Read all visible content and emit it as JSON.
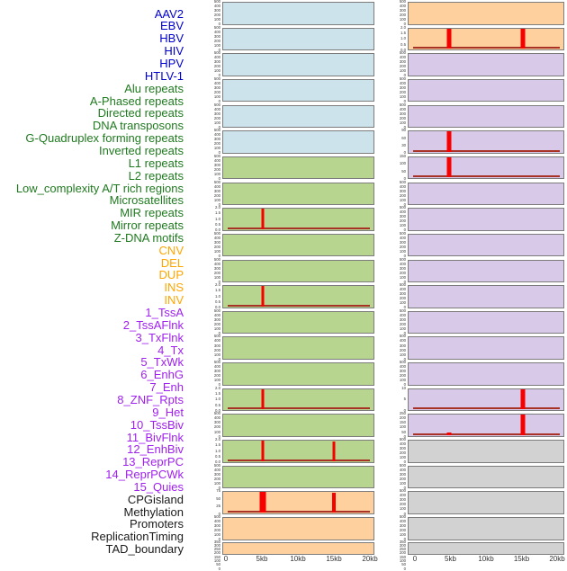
{
  "colors": {
    "labels": {
      "virus": "#0000cd",
      "repeat": "#1f7a1f",
      "variant": "#ffa500",
      "chromhmm": "#a020f0",
      "other": "#1a1a1a"
    },
    "panels": {
      "blue": "#cde3ec",
      "green": "#b7d58e",
      "orange": "#fdd09e",
      "purple": "#d7c9e7",
      "gray": "#d2d2d2"
    },
    "spike_red": "#f80000",
    "baseline_red": "#a93226",
    "panel_border": "#7c7c7c"
  },
  "chart_data": {
    "type": "area",
    "layout": "small multiples: 44 genomic feature tracks in 2 columns of 22 panels; signal plotted over a 0-20kb window; red spikes mark signal peaks at 5kb and/or 15kb",
    "x": {
      "tick_labels": [
        "0",
        "5kb",
        "10kb",
        "15kb",
        "20kb"
      ],
      "range_kb": [
        0,
        20
      ]
    },
    "legend_position": "left label list, one entry per track, grouped by color",
    "tracks": [
      {
        "label": "AAV2",
        "group": "virus",
        "bg": "blue",
        "yticks": [
          "500",
          "400",
          "300",
          "200",
          "100",
          "0"
        ],
        "spikes": [],
        "baseline": false
      },
      {
        "label": "EBV",
        "group": "virus",
        "bg": "blue",
        "yticks": [
          "500",
          "400",
          "300",
          "200",
          "100",
          "0"
        ],
        "spikes": [],
        "baseline": false
      },
      {
        "label": "HBV",
        "group": "virus",
        "bg": "blue",
        "yticks": [
          "500",
          "400",
          "300",
          "200",
          "100",
          "0"
        ],
        "spikes": [],
        "baseline": false
      },
      {
        "label": "HIV",
        "group": "virus",
        "bg": "blue",
        "yticks": [
          "500",
          "400",
          "300",
          "200",
          "100",
          "0"
        ],
        "spikes": [],
        "baseline": false
      },
      {
        "label": "HPV",
        "group": "virus",
        "bg": "blue",
        "yticks": [
          "500",
          "400",
          "300",
          "200",
          "100",
          "0"
        ],
        "spikes": [],
        "baseline": false
      },
      {
        "label": "HTLV-1",
        "group": "virus",
        "bg": "blue",
        "yticks": [
          "500",
          "400",
          "300",
          "200",
          "100",
          "0"
        ],
        "spikes": [],
        "baseline": false
      },
      {
        "label": "Alu repeats",
        "group": "repeat",
        "bg": "green",
        "yticks": [
          "500",
          "400",
          "300",
          "200",
          "100",
          "0"
        ],
        "spikes": [],
        "baseline": false
      },
      {
        "label": "A-Phased repeats",
        "group": "repeat",
        "bg": "green",
        "yticks": [
          "500",
          "400",
          "300",
          "200",
          "100",
          "0"
        ],
        "spikes": [],
        "baseline": false
      },
      {
        "label": "Directed repeats",
        "group": "repeat",
        "bg": "green",
        "yticks": [
          "2.0",
          "1.5",
          "1.0",
          "0.5",
          "0.0"
        ],
        "spikes": [
          {
            "x_kb": 5,
            "h": 1,
            "w": 3
          }
        ],
        "baseline": true
      },
      {
        "label": "DNA transposons",
        "group": "repeat",
        "bg": "green",
        "yticks": [
          "500",
          "400",
          "300",
          "200",
          "100",
          "0"
        ],
        "spikes": [],
        "baseline": false
      },
      {
        "label": "G-Quadruplex forming repeats",
        "group": "repeat",
        "bg": "green",
        "yticks": [
          "500",
          "400",
          "300",
          "200",
          "100",
          "0"
        ],
        "spikes": [],
        "baseline": false
      },
      {
        "label": "Inverted repeats",
        "group": "repeat",
        "bg": "green",
        "yticks": [
          "2.0",
          "1.5",
          "1.0",
          "0.5",
          "0.0"
        ],
        "spikes": [
          {
            "x_kb": 5,
            "h": 1,
            "w": 3
          }
        ],
        "baseline": true
      },
      {
        "label": "L1 repeats",
        "group": "repeat",
        "bg": "green",
        "yticks": [
          "500",
          "400",
          "300",
          "200",
          "100",
          "0"
        ],
        "spikes": [],
        "baseline": false
      },
      {
        "label": "L2 repeats",
        "group": "repeat",
        "bg": "green",
        "yticks": [
          "500",
          "400",
          "300",
          "200",
          "100",
          "0"
        ],
        "spikes": [],
        "baseline": false
      },
      {
        "label": "Low_complexity A/T rich regions",
        "group": "repeat",
        "bg": "green",
        "yticks": [
          "500",
          "400",
          "300",
          "200",
          "100",
          "0"
        ],
        "spikes": [],
        "baseline": false
      },
      {
        "label": "Microsatellites",
        "group": "repeat",
        "bg": "green",
        "yticks": [
          "2.0",
          "1.5",
          "1.0",
          "0.5",
          "0.0"
        ],
        "spikes": [
          {
            "x_kb": 5,
            "h": 1,
            "w": 3
          }
        ],
        "baseline": true
      },
      {
        "label": "MIR repeats",
        "group": "repeat",
        "bg": "green",
        "yticks": [
          "500",
          "400",
          "300",
          "200",
          "100",
          "0"
        ],
        "spikes": [],
        "baseline": false
      },
      {
        "label": "Mirror repeats",
        "group": "repeat",
        "bg": "green",
        "yticks": [
          "2.0",
          "1.5",
          "1.0",
          "0.5",
          "0.0"
        ],
        "spikes": [
          {
            "x_kb": 5,
            "h": 1,
            "w": 3
          },
          {
            "x_kb": 15,
            "h": 0.95,
            "w": 3
          }
        ],
        "baseline": true
      },
      {
        "label": "Z-DNA motifs",
        "group": "repeat",
        "bg": "green",
        "yticks": [
          "500",
          "400",
          "300",
          "200",
          "100",
          "0"
        ],
        "spikes": [],
        "baseline": false
      },
      {
        "label": "CNV",
        "group": "variant",
        "bg": "orange",
        "yticks": [
          "75",
          "50",
          "25",
          "0"
        ],
        "spikes": [
          {
            "x_kb": 5,
            "h": 1,
            "w": 7
          },
          {
            "x_kb": 15,
            "h": 0.97,
            "w": 4
          }
        ],
        "baseline": true
      },
      {
        "label": "DEL",
        "group": "variant",
        "bg": "orange",
        "yticks": [
          "500",
          "400",
          "300",
          "200",
          "100",
          "0"
        ],
        "spikes": [],
        "baseline": false
      },
      {
        "label": "DUP",
        "group": "variant",
        "bg": "orange",
        "yticks": [
          "350",
          "300",
          "250",
          "200",
          "150",
          "100",
          "50",
          "0"
        ],
        "spikes": [],
        "baseline": false
      },
      {
        "label": "INS",
        "group": "variant",
        "bg": "orange",
        "yticks": [
          "500",
          "400",
          "300",
          "200",
          "100",
          "0"
        ],
        "spikes": [],
        "baseline": false
      },
      {
        "label": "INV",
        "group": "variant",
        "bg": "orange",
        "yticks": [
          "2.0",
          "1.5",
          "1.0",
          "0.5",
          "0.0"
        ],
        "spikes": [
          {
            "x_kb": 5,
            "h": 1,
            "w": 5
          },
          {
            "x_kb": 15,
            "h": 1,
            "w": 5
          }
        ],
        "baseline": true
      },
      {
        "label": "1_TssA",
        "group": "chromhmm",
        "bg": "purple",
        "yticks": [
          "500",
          "400",
          "300",
          "200",
          "100",
          "0"
        ],
        "spikes": [],
        "baseline": false
      },
      {
        "label": "2_TssAFlnk",
        "group": "chromhmm",
        "bg": "purple",
        "yticks": [
          "500",
          "400",
          "300",
          "200",
          "100",
          "0"
        ],
        "spikes": [],
        "baseline": false
      },
      {
        "label": "3_TxFlnk",
        "group": "chromhmm",
        "bg": "purple",
        "yticks": [
          "500",
          "400",
          "300",
          "200",
          "100",
          "0"
        ],
        "spikes": [],
        "baseline": false
      },
      {
        "label": "4_Tx",
        "group": "chromhmm",
        "bg": "purple",
        "yticks": [
          "90",
          "60",
          "30",
          "0"
        ],
        "spikes": [
          {
            "x_kb": 5,
            "h": 1,
            "w": 5
          }
        ],
        "baseline": true
      },
      {
        "label": "5_TxWk",
        "group": "chromhmm",
        "bg": "purple",
        "yticks": [
          "150",
          "100",
          "50",
          "0"
        ],
        "spikes": [
          {
            "x_kb": 5,
            "h": 1,
            "w": 5
          }
        ],
        "baseline": true
      },
      {
        "label": "6_EnhG",
        "group": "chromhmm",
        "bg": "purple",
        "yticks": [
          "500",
          "400",
          "300",
          "200",
          "100",
          "0"
        ],
        "spikes": [],
        "baseline": false
      },
      {
        "label": "7_Enh",
        "group": "chromhmm",
        "bg": "purple",
        "yticks": [
          "500",
          "400",
          "300",
          "200",
          "100",
          "0"
        ],
        "spikes": [],
        "baseline": false
      },
      {
        "label": "8_ZNF_Rpts",
        "group": "chromhmm",
        "bg": "purple",
        "yticks": [
          "500",
          "400",
          "300",
          "200",
          "100",
          "0"
        ],
        "spikes": [],
        "baseline": false
      },
      {
        "label": "9_Het",
        "group": "chromhmm",
        "bg": "purple",
        "yticks": [
          "500",
          "400",
          "300",
          "200",
          "100",
          "0"
        ],
        "spikes": [],
        "baseline": false
      },
      {
        "label": "10_TssBiv",
        "group": "chromhmm",
        "bg": "purple",
        "yticks": [
          "500",
          "400",
          "300",
          "200",
          "100",
          "0"
        ],
        "spikes": [],
        "baseline": false
      },
      {
        "label": "11_BivFlnk",
        "group": "chromhmm",
        "bg": "purple",
        "yticks": [
          "500",
          "400",
          "300",
          "200",
          "100",
          "0"
        ],
        "spikes": [],
        "baseline": false
      },
      {
        "label": "12_EnhBiv",
        "group": "chromhmm",
        "bg": "purple",
        "yticks": [
          "500",
          "400",
          "300",
          "200",
          "100",
          "0"
        ],
        "spikes": [],
        "baseline": false
      },
      {
        "label": "13_ReprPC",
        "group": "chromhmm",
        "bg": "purple",
        "yticks": [
          "500",
          "400",
          "300",
          "200",
          "100",
          "0"
        ],
        "spikes": [],
        "baseline": false
      },
      {
        "label": "14_ReprPCWk",
        "group": "chromhmm",
        "bg": "purple",
        "yticks": [
          "10",
          "5",
          "0"
        ],
        "spikes": [
          {
            "x_kb": 15,
            "h": 1,
            "w": 5
          }
        ],
        "baseline": true
      },
      {
        "label": "15_Quies",
        "group": "chromhmm",
        "bg": "purple",
        "yticks": [
          "250",
          "200",
          "150",
          "100",
          "50",
          "0"
        ],
        "spikes": [
          {
            "x_kb": 5,
            "h": 0.15,
            "w": 5
          },
          {
            "x_kb": 15,
            "h": 1,
            "w": 5
          }
        ],
        "baseline": true
      },
      {
        "label": "CPGisland",
        "group": "other",
        "bg": "gray",
        "yticks": [
          "500",
          "400",
          "300",
          "200",
          "100",
          "0"
        ],
        "spikes": [],
        "baseline": false
      },
      {
        "label": "Methylation",
        "group": "other",
        "bg": "gray",
        "yticks": [
          "500",
          "400",
          "300",
          "200",
          "100",
          "0"
        ],
        "spikes": [],
        "baseline": false
      },
      {
        "label": "Promoters",
        "group": "other",
        "bg": "gray",
        "yticks": [
          "500",
          "400",
          "300",
          "200",
          "100",
          "0"
        ],
        "spikes": [],
        "baseline": false
      },
      {
        "label": "ReplicationTiming",
        "group": "other",
        "bg": "gray",
        "yticks": [
          "500",
          "400",
          "300",
          "200",
          "100",
          "0"
        ],
        "spikes": [],
        "baseline": false
      },
      {
        "label": "TAD_boundary",
        "group": "other",
        "bg": "gray",
        "yticks": [
          "350",
          "300",
          "250",
          "200",
          "150",
          "100",
          "50",
          "0"
        ],
        "spikes": [],
        "baseline": false
      }
    ]
  }
}
